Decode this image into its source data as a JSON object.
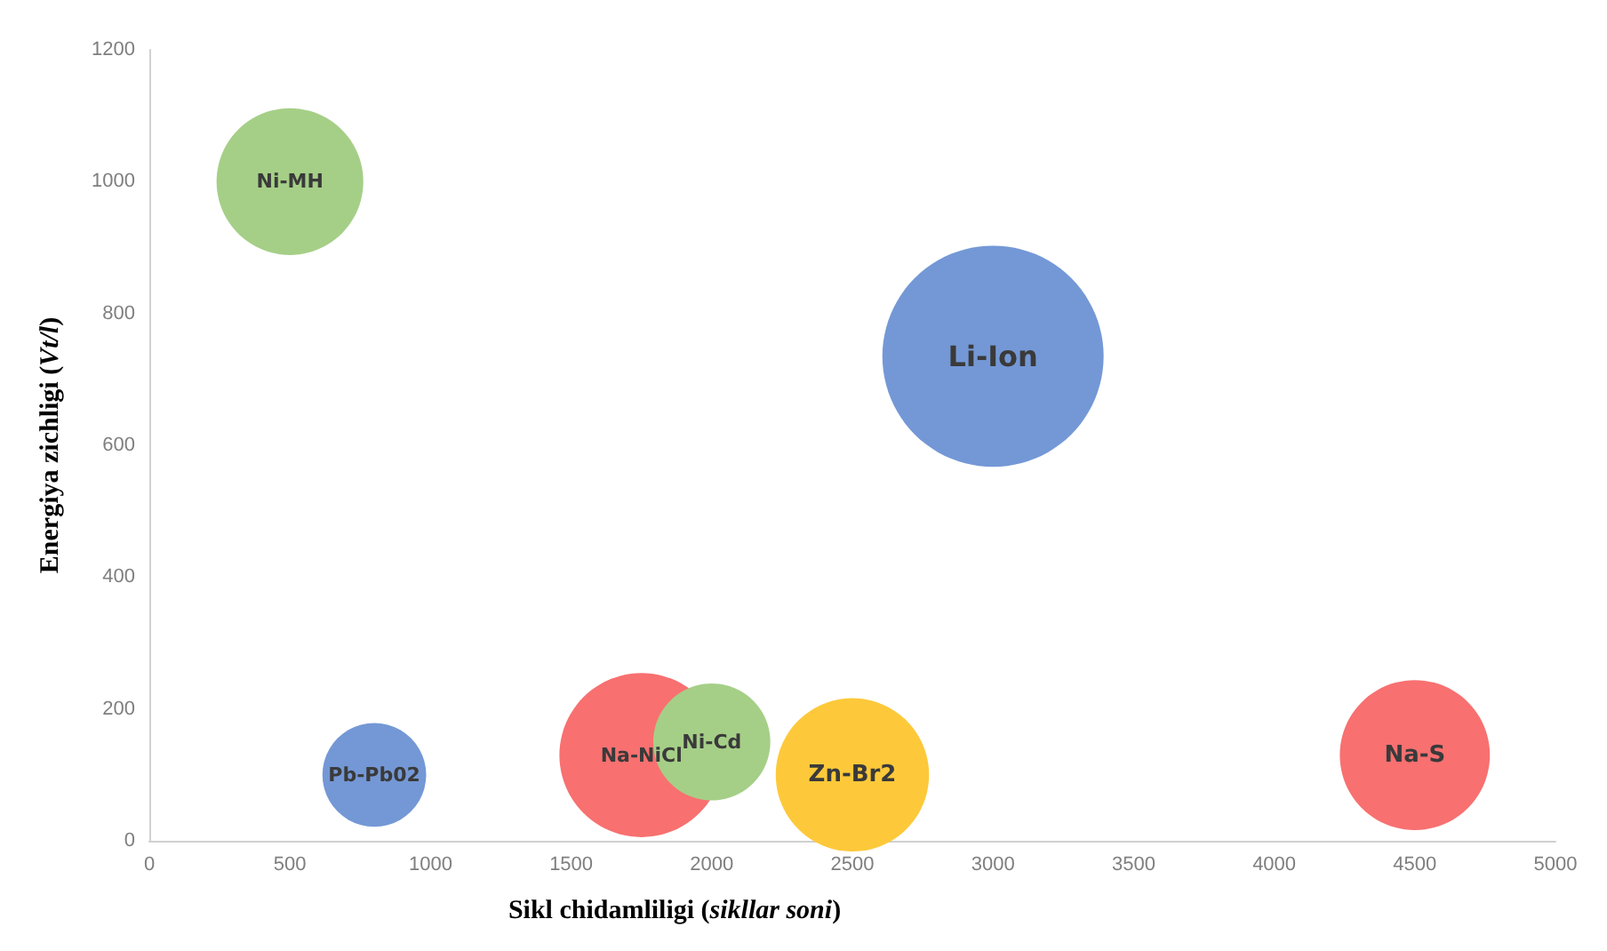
{
  "chart_data": {
    "type": "bubble",
    "xlabel": "Sikl chidamliligi (sikllar soni)",
    "ylabel": "Energiya zichligi (Vt/l)",
    "xlim": [
      0,
      5000
    ],
    "xticks": [
      0,
      500,
      1000,
      1500,
      2000,
      2500,
      3000,
      3500,
      4000,
      4500,
      5000
    ],
    "ylim": [
      0,
      1200
    ],
    "yticks": [
      0,
      200,
      400,
      600,
      800,
      1000,
      1200
    ],
    "grid": false,
    "legend": false,
    "series": [
      {
        "name": "Ni-MH",
        "color": "#a5cf87",
        "x": [
          500
        ],
        "values": [
          1000
        ],
        "sizes": [
          0.44
        ]
      },
      {
        "name": "Li-Ion",
        "color": "#7498d6",
        "x": [
          3000
        ],
        "values": [
          735
        ],
        "sizes": [
          1
        ]
      },
      {
        "name": "Pb-Pb02",
        "color": "#7498d6",
        "x": [
          800
        ],
        "values": [
          100
        ],
        "sizes": [
          0.22
        ]
      },
      {
        "name": "Na-NiCl",
        "color": "#f87070",
        "x": [
          1750
        ],
        "values": [
          130
        ],
        "sizes": [
          0.55
        ]
      },
      {
        "name": "Ni-Cd",
        "color": "#a5cf87",
        "x": [
          2000
        ],
        "values": [
          150
        ],
        "sizes": [
          0.28
        ]
      },
      {
        "name": "Zn-Br2",
        "color": "#fdc93a",
        "x": [
          2500
        ],
        "values": [
          100
        ],
        "sizes": [
          0.48
        ]
      },
      {
        "name": "Na-S",
        "color": "#f87070",
        "x": [
          4500
        ],
        "values": [
          130
        ],
        "sizes": [
          0.46
        ]
      }
    ]
  }
}
